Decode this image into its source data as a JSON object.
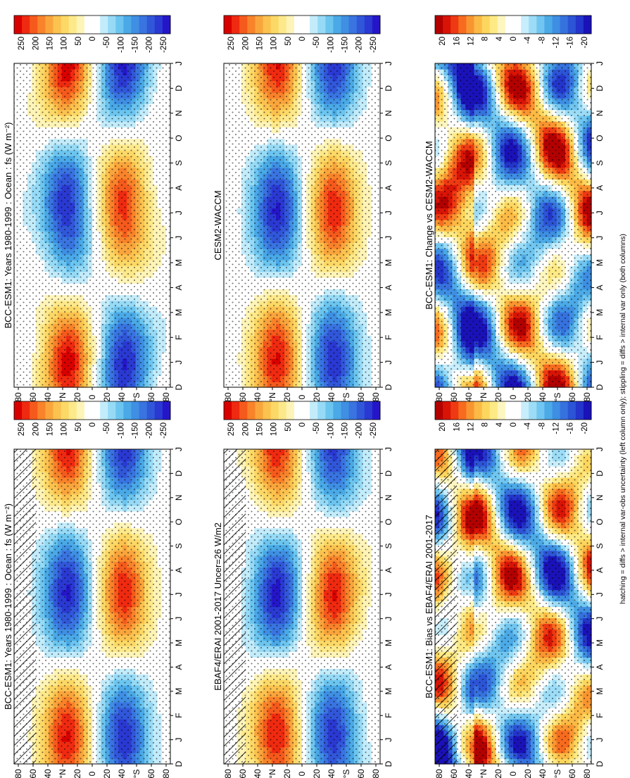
{
  "figure": {
    "footnote": "hatching = diffs > internal var-obs uncertainty (left column only); stippling = diffs > internal var only (both columns)"
  },
  "chart_data": [
    {
      "id": "p-bcc-left",
      "type": "heatmap",
      "title": "BCC-ESM1: Years 1980-1999 : Ocean : fs (W m⁻²)",
      "x_ticks": [
        "D",
        "J",
        "F",
        "M",
        "A",
        "M",
        "J",
        "J",
        "A",
        "S",
        "O",
        "N",
        "D",
        "J"
      ],
      "y_ticks": [
        "80",
        "60",
        "40",
        "°N",
        "20",
        "0",
        "20",
        "40",
        "°S",
        "60",
        "80"
      ],
      "colorbar_ticks": [
        "250",
        "200",
        "150",
        "100",
        "50",
        "0",
        "-50",
        "-100",
        "-150",
        "-200",
        "-250"
      ],
      "scale": "flux",
      "range": [
        -250,
        250
      ],
      "hatching": true,
      "stippling": true
    },
    {
      "id": "p-bcc-right",
      "type": "heatmap",
      "title": "BCC-ESM1: Years 1980-1999 : Ocean : fs (W m⁻²)",
      "x_ticks": [
        "D",
        "J",
        "F",
        "M",
        "A",
        "M",
        "J",
        "J",
        "A",
        "S",
        "O",
        "N",
        "D",
        "J"
      ],
      "y_ticks": [
        "80",
        "60",
        "40",
        "°N",
        "20",
        "0",
        "20",
        "40",
        "°S",
        "60",
        "80"
      ],
      "colorbar_ticks": [
        "250",
        "200",
        "150",
        "100",
        "50",
        "0",
        "-50",
        "-100",
        "-150",
        "-200",
        "-250"
      ],
      "scale": "flux",
      "range": [
        -250,
        250
      ],
      "hatching": false,
      "stippling": true
    },
    {
      "id": "p-obs",
      "type": "heatmap",
      "title": "EBAF4/ERAI 2001-2017 Uncer=26 W/m2",
      "x_ticks": [
        "D",
        "J",
        "F",
        "M",
        "A",
        "M",
        "J",
        "J",
        "A",
        "S",
        "O",
        "N",
        "D",
        "J"
      ],
      "y_ticks": [
        "80",
        "60",
        "40",
        "°N",
        "20",
        "0",
        "20",
        "40",
        "°S",
        "60",
        "80"
      ],
      "colorbar_ticks": [
        "250",
        "200",
        "150",
        "100",
        "50",
        "0",
        "-50",
        "-100",
        "-150",
        "-200",
        "-250"
      ],
      "scale": "flux",
      "range": [
        -250,
        250
      ],
      "hatching": true,
      "stippling": true
    },
    {
      "id": "p-cesm",
      "type": "heatmap",
      "title": "CESM2-WACCM",
      "x_ticks": [
        "D",
        "J",
        "F",
        "M",
        "A",
        "M",
        "J",
        "J",
        "A",
        "S",
        "O",
        "N",
        "D",
        "J"
      ],
      "y_ticks": [
        "80",
        "60",
        "40",
        "°N",
        "20",
        "0",
        "20",
        "40",
        "°S",
        "60",
        "80"
      ],
      "colorbar_ticks": [
        "250",
        "200",
        "150",
        "100",
        "50",
        "0",
        "-50",
        "-100",
        "-150",
        "-200",
        "-250"
      ],
      "scale": "flux",
      "range": [
        -250,
        250
      ],
      "hatching": false,
      "stippling": true
    },
    {
      "id": "p-bias",
      "type": "heatmap",
      "title": "BCC-ESM1: Bias vs EBAF4/ERAI 2001-2017",
      "x_ticks": [
        "D",
        "J",
        "F",
        "M",
        "A",
        "M",
        "J",
        "J",
        "A",
        "S",
        "O",
        "N",
        "D",
        "J"
      ],
      "y_ticks": [
        "80",
        "60",
        "40",
        "°N",
        "20",
        "0",
        "20",
        "40",
        "°S",
        "60",
        "80"
      ],
      "colorbar_ticks": [
        "20",
        "16",
        "12",
        "8",
        "4",
        "0",
        "-4",
        "-8",
        "-12",
        "-16",
        "-20"
      ],
      "scale": "diff",
      "range": [
        -20,
        20
      ],
      "hatching": true,
      "stippling": true
    },
    {
      "id": "p-change",
      "type": "heatmap",
      "title": "BCC-ESM1: Change vs CESM2-WACCM",
      "x_ticks": [
        "D",
        "J",
        "F",
        "M",
        "A",
        "M",
        "J",
        "J",
        "A",
        "S",
        "O",
        "N",
        "D",
        "J"
      ],
      "y_ticks": [
        "80",
        "60",
        "40",
        "°N",
        "20",
        "0",
        "20",
        "40",
        "°S",
        "60",
        "80"
      ],
      "colorbar_ticks": [
        "20",
        "16",
        "12",
        "8",
        "4",
        "0",
        "-4",
        "-8",
        "-12",
        "-16",
        "-20"
      ],
      "scale": "diff",
      "range": [
        -20,
        20
      ],
      "hatching": false,
      "stippling": true
    }
  ]
}
